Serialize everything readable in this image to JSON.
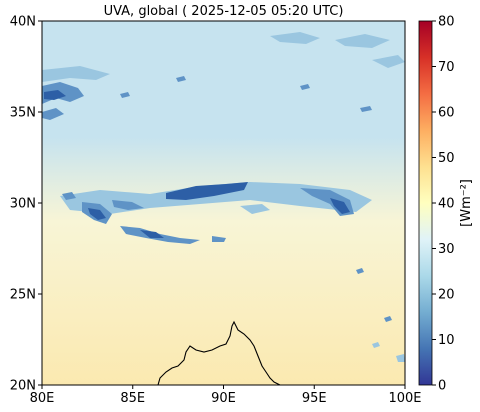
{
  "title": "UVA, global ( 2025-12-05 05:20 UTC)",
  "map": {
    "lon_range": [
      80,
      100
    ],
    "lat_range": [
      20,
      40
    ],
    "x_ticks": [
      {
        "value": 80,
        "label": "80E"
      },
      {
        "value": 85,
        "label": "85E"
      },
      {
        "value": 90,
        "label": "90E"
      },
      {
        "value": 95,
        "label": "95E"
      },
      {
        "value": 100,
        "label": "100E"
      }
    ],
    "y_ticks": [
      {
        "value": 20,
        "label": "20N"
      },
      {
        "value": 25,
        "label": "25N"
      },
      {
        "value": 30,
        "label": "30N"
      },
      {
        "value": 35,
        "label": "35N"
      },
      {
        "value": 40,
        "label": "40N"
      }
    ]
  },
  "colorbar": {
    "label": "[Wm⁻²]",
    "range": [
      0,
      80
    ],
    "ticks": [
      {
        "value": 0,
        "label": "0"
      },
      {
        "value": 10,
        "label": "10"
      },
      {
        "value": 20,
        "label": "20"
      },
      {
        "value": 30,
        "label": "30"
      },
      {
        "value": 40,
        "label": "40"
      },
      {
        "value": 50,
        "label": "50"
      },
      {
        "value": 60,
        "label": "60"
      },
      {
        "value": 70,
        "label": "70"
      },
      {
        "value": 80,
        "label": "80"
      }
    ],
    "colors": [
      "#313695",
      "#4575b4",
      "#74add1",
      "#abd9e9",
      "#e0f3f8",
      "#ffffbf",
      "#fee090",
      "#fdae61",
      "#f46d43",
      "#d73027",
      "#a50026"
    ]
  },
  "field_colors": {
    "north_background": "#c6e3ef",
    "mid_background": "#f8f5d6",
    "south_background": "#fbe9b0",
    "cloud_deep": "#2d5fa6",
    "cloud_mid": "#5f93c6",
    "cloud_light": "#9ac6e0",
    "coastline": "#000000"
  }
}
